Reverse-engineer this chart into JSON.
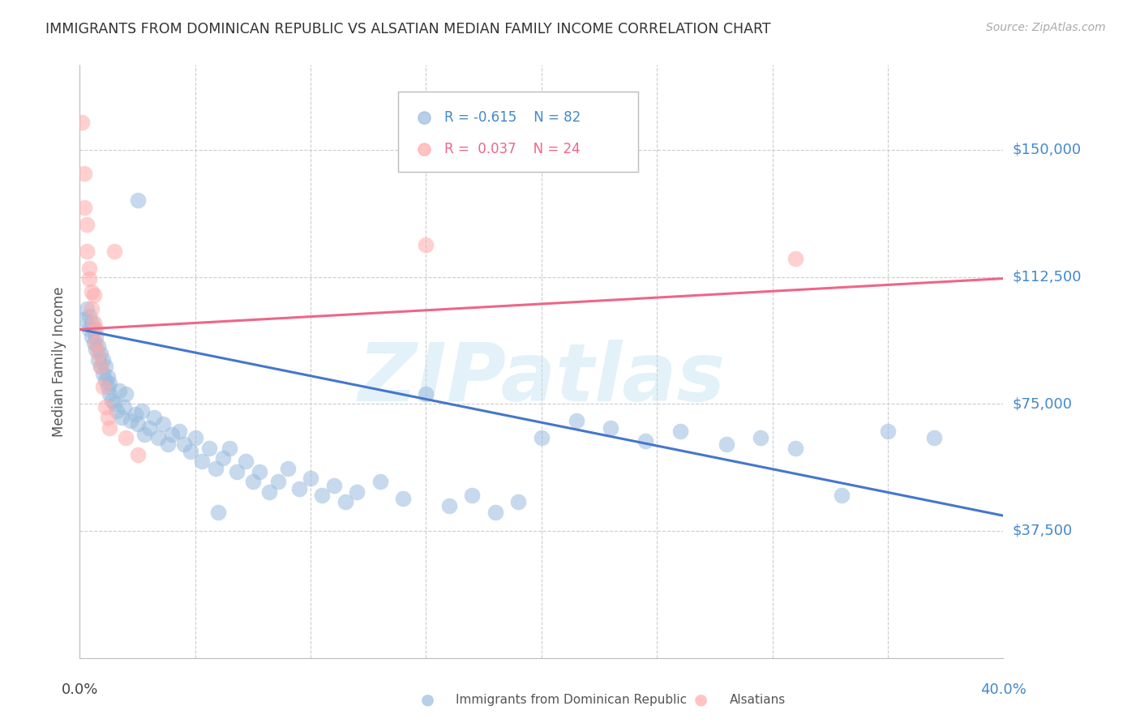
{
  "title": "IMMIGRANTS FROM DOMINICAN REPUBLIC VS ALSATIAN MEDIAN FAMILY INCOME CORRELATION CHART",
  "source": "Source: ZipAtlas.com",
  "ylabel": "Median Family Income",
  "ytick_color": "#4488CC",
  "blue_color": "#99BBDD",
  "pink_color": "#FFAAAA",
  "line_blue": "#4477CC",
  "line_pink": "#EE6688",
  "watermark": "ZIPatlas",
  "watermark_color": "#BBDDEE",
  "legend_blue_r": "R = -0.615",
  "legend_blue_n": "N = 82",
  "legend_pink_r": "R =  0.037",
  "legend_pink_n": "N = 24",
  "xlim": [
    0.0,
    0.4
  ],
  "ylim": [
    0,
    175000
  ],
  "ytick_vals": [
    37500,
    75000,
    112500,
    150000
  ],
  "ytick_labels": [
    "$37,500",
    "$75,000",
    "$112,500",
    "$150,000"
  ],
  "xtick_vals": [
    0.0,
    0.05,
    0.1,
    0.15,
    0.2,
    0.25,
    0.3,
    0.35,
    0.4
  ],
  "blue_trendline_x": [
    0.0,
    0.4
  ],
  "blue_trendline_y": [
    97000,
    42000
  ],
  "pink_trendline_x": [
    0.0,
    0.4
  ],
  "pink_trendline_y": [
    97000,
    112000
  ],
  "blue_points_x": [
    0.002,
    0.003,
    0.004,
    0.004,
    0.005,
    0.005,
    0.006,
    0.006,
    0.007,
    0.007,
    0.008,
    0.008,
    0.009,
    0.009,
    0.01,
    0.01,
    0.011,
    0.011,
    0.012,
    0.012,
    0.013,
    0.013,
    0.014,
    0.015,
    0.016,
    0.017,
    0.018,
    0.019,
    0.02,
    0.022,
    0.024,
    0.025,
    0.027,
    0.028,
    0.03,
    0.032,
    0.034,
    0.036,
    0.038,
    0.04,
    0.043,
    0.045,
    0.048,
    0.05,
    0.053,
    0.056,
    0.059,
    0.062,
    0.065,
    0.068,
    0.072,
    0.075,
    0.078,
    0.082,
    0.086,
    0.09,
    0.095,
    0.1,
    0.105,
    0.11,
    0.115,
    0.12,
    0.13,
    0.14,
    0.15,
    0.16,
    0.17,
    0.18,
    0.19,
    0.2,
    0.215,
    0.23,
    0.245,
    0.26,
    0.28,
    0.295,
    0.31,
    0.33,
    0.35,
    0.37,
    0.06,
    0.025
  ],
  "blue_points_y": [
    100000,
    103000,
    97000,
    101000,
    95000,
    99000,
    93000,
    97000,
    91000,
    95000,
    88000,
    92000,
    86000,
    90000,
    84000,
    88000,
    82000,
    86000,
    80000,
    83000,
    78000,
    81000,
    76000,
    75000,
    73000,
    79000,
    71000,
    74000,
    78000,
    70000,
    72000,
    69000,
    73000,
    66000,
    68000,
    71000,
    65000,
    69000,
    63000,
    66000,
    67000,
    63000,
    61000,
    65000,
    58000,
    62000,
    56000,
    59000,
    62000,
    55000,
    58000,
    52000,
    55000,
    49000,
    52000,
    56000,
    50000,
    53000,
    48000,
    51000,
    46000,
    49000,
    52000,
    47000,
    78000,
    45000,
    48000,
    43000,
    46000,
    65000,
    70000,
    68000,
    64000,
    67000,
    63000,
    65000,
    62000,
    48000,
    67000,
    65000,
    43000,
    135000
  ],
  "pink_points_x": [
    0.001,
    0.002,
    0.002,
    0.003,
    0.003,
    0.004,
    0.004,
    0.005,
    0.005,
    0.006,
    0.006,
    0.007,
    0.007,
    0.008,
    0.009,
    0.01,
    0.011,
    0.012,
    0.013,
    0.015,
    0.02,
    0.025,
    0.15,
    0.31
  ],
  "pink_points_y": [
    158000,
    143000,
    133000,
    128000,
    120000,
    115000,
    112000,
    108000,
    103000,
    107000,
    99000,
    97000,
    93000,
    90000,
    86000,
    80000,
    74000,
    71000,
    68000,
    120000,
    65000,
    60000,
    122000,
    118000
  ]
}
